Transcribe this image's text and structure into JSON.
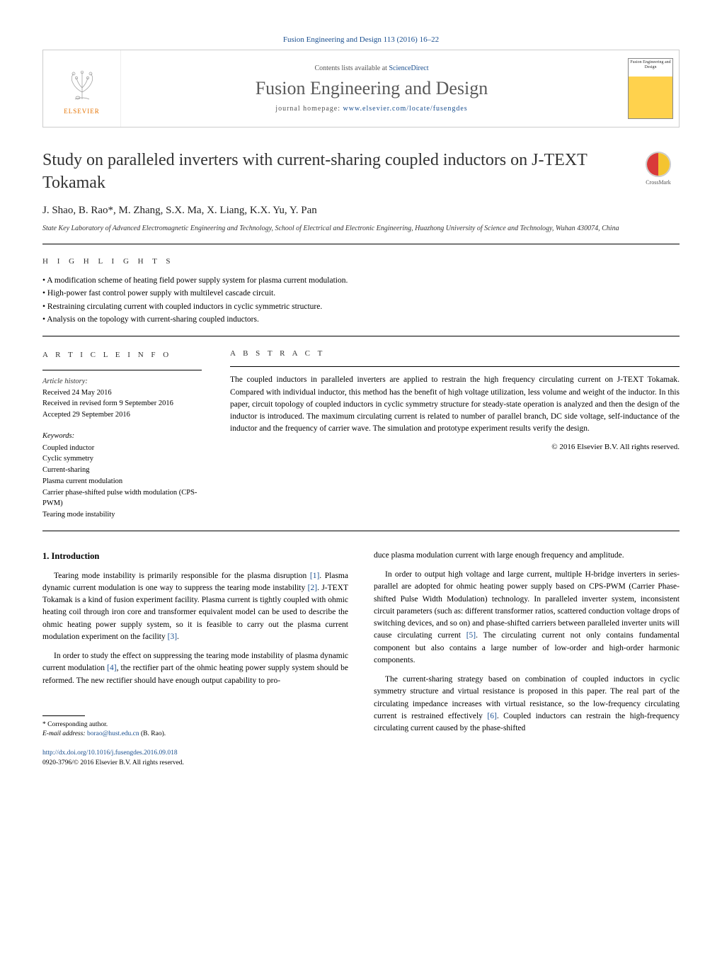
{
  "journal_header_link": "Fusion Engineering and Design 113 (2016) 16–22",
  "header": {
    "elsevier_label": "ELSEVIER",
    "contents_prefix": "Contents lists available at ",
    "contents_link": "ScienceDirect",
    "journal_title": "Fusion Engineering and Design",
    "homepage_prefix": "journal homepage: ",
    "homepage_link": "www.elsevier.com/locate/fusengdes",
    "cover_title": "Fusion Engineering and Design"
  },
  "crossmark_label": "CrossMark",
  "article": {
    "title": "Study on paralleled inverters with current-sharing coupled inductors on J-TEXT Tokamak",
    "authors": "J. Shao, B. Rao*, M. Zhang, S.X. Ma, X. Liang, K.X. Yu, Y. Pan",
    "affiliation": "State Key Laboratory of Advanced Electromagnetic Engineering and Technology, School of Electrical and Electronic Engineering, Huazhong University of Science and Technology, Wuhan 430074, China"
  },
  "highlights": {
    "label": "H I G H L I G H T S",
    "items": [
      "A modification scheme of heating field power supply system for plasma current modulation.",
      "High-power fast control power supply with multilevel cascade circuit.",
      "Restraining circulating current with coupled inductors in cyclic symmetric structure.",
      "Analysis on the topology with current-sharing coupled inductors."
    ]
  },
  "article_info": {
    "label": "A R T I C L E    I N F O",
    "history_label": "Article history:",
    "received": "Received 24 May 2016",
    "revised": "Received in revised form 9 September 2016",
    "accepted": "Accepted 29 September 2016",
    "keywords_label": "Keywords:",
    "keywords": [
      "Coupled inductor",
      "Cyclic symmetry",
      "Current-sharing",
      "Plasma current modulation",
      "Carrier phase-shifted pulse width modulation (CPS-PWM)",
      "Tearing mode instability"
    ]
  },
  "abstract": {
    "label": "A B S T R A C T",
    "text": "The coupled inductors in paralleled inverters are applied to restrain the high frequency circulating current on J-TEXT Tokamak. Compared with individual inductor, this method has the benefit of high voltage utilization, less volume and weight of the inductor. In this paper, circuit topology of coupled inductors in cyclic symmetry structure for steady-state operation is analyzed and then the design of the inductor is introduced. The maximum circulating current is related to number of parallel branch, DC side voltage, self-inductance of the inductor and the frequency of carrier wave. The simulation and prototype experiment results verify the design.",
    "copyright": "© 2016 Elsevier B.V. All rights reserved."
  },
  "body": {
    "intro_heading": "1. Introduction",
    "left_paras": [
      "Tearing mode instability is primarily responsible for the plasma disruption [1]. Plasma dynamic current modulation is one way to suppress the tearing mode instability [2]. J-TEXT Tokamak is a kind of fusion experiment facility. Plasma current is tightly coupled with ohmic heating coil through iron core and transformer equivalent model can be used to describe the ohmic heating power supply system, so it is feasible to carry out the plasma current modulation experiment on the facility [3].",
      "In order to study the effect on suppressing the tearing mode instability of plasma dynamic current modulation [4], the rectifier part of the ohmic heating power supply system should be reformed. The new rectifier should have enough output capability to pro-"
    ],
    "right_paras": [
      "duce plasma modulation current with large enough frequency and amplitude.",
      "In order to output high voltage and large current, multiple H-bridge inverters in series-parallel are adopted for ohmic heating power supply based on CPS-PWM (Carrier Phase-shifted Pulse Width Modulation) technology. In paralleled inverter system, inconsistent circuit parameters (such as: different transformer ratios, scattered conduction voltage drops of switching devices, and so on) and phase-shifted carriers between paralleled inverter units will cause circulating current [5]. The circulating current not only contains fundamental component but also contains a large number of low-order and high-order harmonic components.",
      "The current-sharing strategy based on combination of coupled inductors in cyclic symmetry structure and virtual resistance is proposed in this paper. The real part of the circulating impedance increases with virtual resistance, so the low-frequency circulating current is restrained effectively [6]. Coupled inductors can restrain the high-frequency circulating current caused by the phase-shifted"
    ]
  },
  "footnote": {
    "corr_label": "* Corresponding author.",
    "email_label": "E-mail address: ",
    "email": "borao@hust.edu.cn",
    "email_suffix": " (B. Rao)."
  },
  "doi": {
    "link": "http://dx.doi.org/10.1016/j.fusengdes.2016.09.018",
    "issn_line": "0920-3796/© 2016 Elsevier B.V. All rights reserved."
  },
  "colors": {
    "link": "#1a4f8f",
    "elsevier_orange": "#e57200",
    "text": "#000000",
    "rule": "#000000"
  }
}
